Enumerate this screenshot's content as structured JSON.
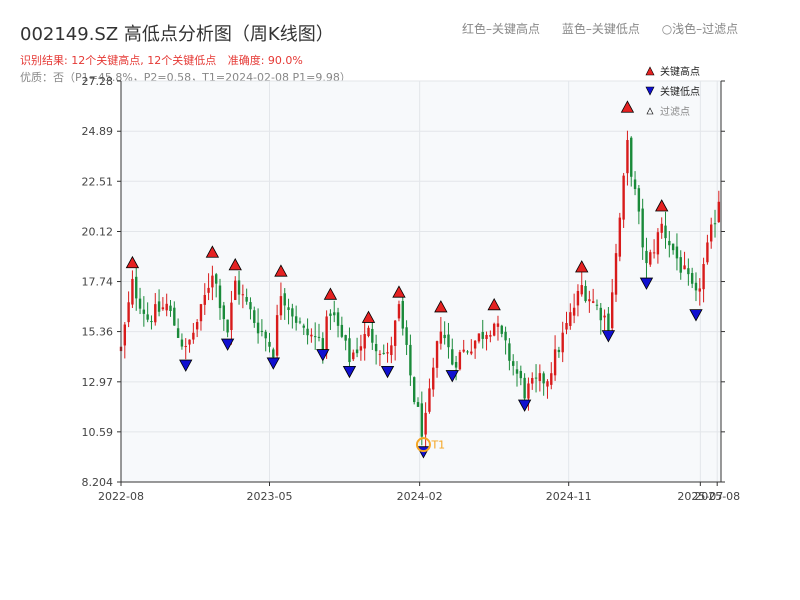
{
  "title": "002149.SZ 高低点分析图（周K线图）",
  "legend_top": {
    "red": "红色–关键高点",
    "blue": "蓝色–关键低点",
    "light": "○浅色–过滤点"
  },
  "result": {
    "summary": "识别结果: 12个关键高点, 12个关键低点",
    "accuracy": "准确度: 90.0%"
  },
  "quality": "优质：否（P1=45.8%，P2=0.58，T1=2024-02-08 P1=9.98）",
  "colors": {
    "up": "#d81b1b",
    "down": "#1a8a3a",
    "high_marker": "#e52222",
    "low_marker": "#1010d0",
    "t1_marker": "#f5a623"
  },
  "chart_data": {
    "type": "candlestick",
    "title": "002149.SZ 高低点分析图（周K线图）",
    "xlabel": "",
    "ylabel": "",
    "ylim": [
      8.204,
      27.28
    ],
    "yticks": [
      8.204,
      10.59,
      12.97,
      15.36,
      17.74,
      20.12,
      22.51,
      24.89,
      27.28
    ],
    "xlim": [
      "2022-08-01",
      "2025-08-08"
    ],
    "xticks": [
      "2022-08",
      "2023-05",
      "2024-02",
      "2024-11",
      "2025-07",
      "2025-08"
    ],
    "grid": true,
    "legend": {
      "position": "top-right",
      "entries": [
        "关键高点",
        "关键低点",
        "过滤点"
      ]
    },
    "key_highs": [
      {
        "date": "2022-08-22",
        "price": 18.3
      },
      {
        "date": "2023-01-16",
        "price": 18.8
      },
      {
        "date": "2023-02-27",
        "price": 18.2
      },
      {
        "date": "2023-05-22",
        "price": 17.9
      },
      {
        "date": "2023-08-21",
        "price": 16.8
      },
      {
        "date": "2023-10-30",
        "price": 15.7
      },
      {
        "date": "2023-12-25",
        "price": 16.9
      },
      {
        "date": "2024-03-11",
        "price": 16.2
      },
      {
        "date": "2024-06-17",
        "price": 16.3
      },
      {
        "date": "2024-11-25",
        "price": 18.1
      },
      {
        "date": "2025-02-17",
        "price": 25.7
      },
      {
        "date": "2025-04-21",
        "price": 21.0
      }
    ],
    "key_lows": [
      {
        "date": "2022-11-28",
        "price": 14.1
      },
      {
        "date": "2023-02-13",
        "price": 15.1
      },
      {
        "date": "2023-05-08",
        "price": 14.2
      },
      {
        "date": "2023-08-07",
        "price": 14.6
      },
      {
        "date": "2023-09-25",
        "price": 13.8
      },
      {
        "date": "2023-12-04",
        "price": 13.8
      },
      {
        "date": "2024-02-08",
        "price": 9.98
      },
      {
        "date": "2024-04-01",
        "price": 13.6
      },
      {
        "date": "2024-08-12",
        "price": 12.2
      },
      {
        "date": "2025-01-13",
        "price": 15.5
      },
      {
        "date": "2025-03-24",
        "price": 18.0
      },
      {
        "date": "2025-06-23",
        "price": 16.5
      }
    ],
    "t1": {
      "label": "T1",
      "date": "2024-02-08",
      "price": 9.98
    },
    "anchors": [
      [
        "2022-08-01",
        14.5
      ],
      [
        "2022-08-22",
        17.6
      ],
      [
        "2022-09-19",
        16.0
      ],
      [
        "2022-10-24",
        16.6
      ],
      [
        "2022-11-28",
        14.4
      ],
      [
        "2022-12-26",
        16.3
      ],
      [
        "2023-01-16",
        18.3
      ],
      [
        "2023-02-13",
        15.4
      ],
      [
        "2023-02-27",
        17.7
      ],
      [
        "2023-04-03",
        15.9
      ],
      [
        "2023-05-08",
        14.5
      ],
      [
        "2023-05-22",
        17.3
      ],
      [
        "2023-07-03",
        15.3
      ],
      [
        "2023-08-07",
        14.9
      ],
      [
        "2023-08-21",
        16.4
      ],
      [
        "2023-09-25",
        14.1
      ],
      [
        "2023-10-30",
        15.3
      ],
      [
        "2023-12-04",
        14.1
      ],
      [
        "2023-12-25",
        16.4
      ],
      [
        "2024-01-22",
        12.2
      ],
      [
        "2024-02-08",
        10.4
      ],
      [
        "2024-03-11",
        15.7
      ],
      [
        "2024-04-01",
        13.9
      ],
      [
        "2024-06-17",
        15.8
      ],
      [
        "2024-08-12",
        12.5
      ],
      [
        "2024-09-23",
        13.2
      ],
      [
        "2024-11-25",
        17.5
      ],
      [
        "2025-01-13",
        15.8
      ],
      [
        "2025-01-27",
        19.0
      ],
      [
        "2025-02-17",
        24.2
      ],
      [
        "2025-03-24",
        18.4
      ],
      [
        "2025-04-21",
        20.4
      ],
      [
        "2025-06-23",
        16.9
      ],
      [
        "2025-07-28",
        20.8
      ],
      [
        "2025-08-08",
        22.3
      ]
    ]
  }
}
